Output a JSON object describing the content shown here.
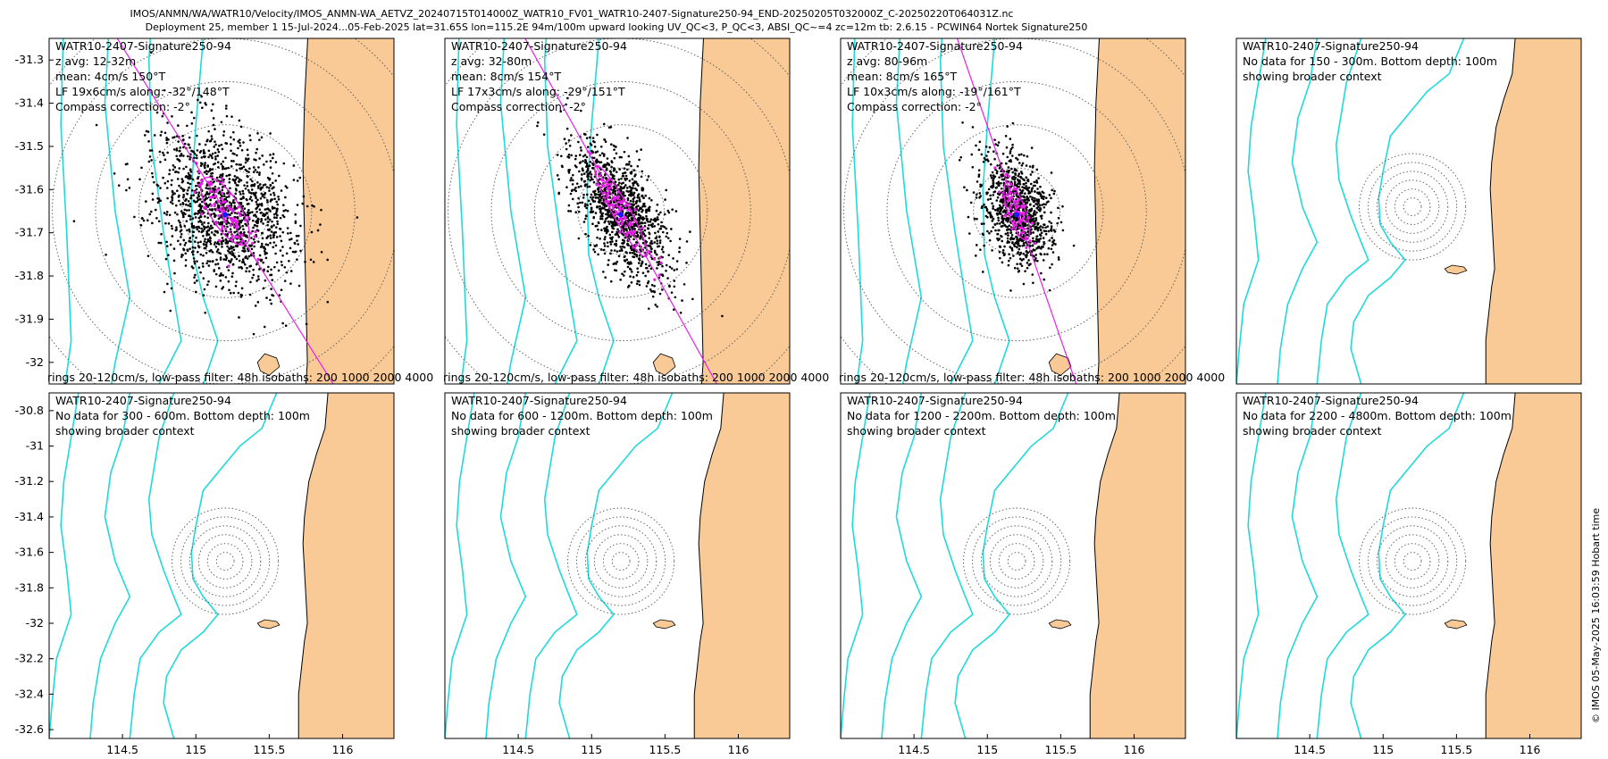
{
  "header": {
    "line1": "IMOS/ANMN/WA/WATR10/Velocity/IMOS_ANMN-WA_AETVZ_20240715T014000Z_WATR10_FV01_WATR10-2407-Signature250-94_END-20250205T032000Z_C-20250220T064031Z.nc",
    "line2": "Deployment 25, member 1 15-Jul-2024...05-Feb-2025 lat=31.65S lon=115.2E 94m/100m upward looking UV_QC<3, P_QC<3, ABSI_QC~=4 zc=12m tb: 2.6.15 - PCWIN64 Nortek Signature250"
  },
  "footer_stamp": "© IMOS 05-May-2025 16:03:59 Hobart time",
  "colors": {
    "land": "#FACA96",
    "isobath": "#1EDADA",
    "ellipse": "#E81FE8",
    "mean_arrow": "#1a1aff",
    "dots": "#000000"
  },
  "chart_data": [
    {
      "type": "scatter",
      "name": "panel-1",
      "lines": [
        "WATR10-2407-Signature250-94",
        "z avg: 12-32m",
        "mean: 4cm/s 150°T",
        "LF 19x6cm/s along: -32°/148°T",
        "Compass correction: -2°"
      ],
      "bottom_text": "rings 20-120cm/s, low-pass filter: 48h isobaths: 200 1000 2000 4000",
      "xlim": [
        114.0,
        116.35
      ],
      "ylim": [
        -32.05,
        -31.25
      ],
      "yticks": [
        -31.3,
        -31.4,
        -31.5,
        -31.6,
        -31.7,
        -31.8,
        -31.9,
        -32
      ],
      "ytick_labels": [
        "-31.3",
        "-31.4",
        "-31.5",
        "-31.6",
        "-31.7",
        "-31.8",
        "-31.9",
        "-32"
      ],
      "xticks": [],
      "xtick_labels": [],
      "ring_center": [
        115.2,
        -31.65
      ],
      "ring_step": 0.1,
      "rings": 6,
      "cloud": {
        "semi_major": 0.2,
        "semi_minor": 0.15,
        "angle_deg": 150,
        "count": 1400
      },
      "lf": {
        "semi_major": 0.09,
        "semi_minor": 0.035,
        "angle_deg": 148,
        "count": 90
      },
      "axis_line_deg": 148
    },
    {
      "type": "scatter",
      "name": "panel-2",
      "lines": [
        "WATR10-2407-Signature250-94",
        "z avg: 32-80m",
        "mean: 8cm/s 154°T",
        "LF 17x3cm/s along: -29°/151°T",
        "Compass correction: -2°"
      ],
      "bottom_text": "rings 20-120cm/s, low-pass filter: 48h isobaths: 200 1000 2000 4000",
      "xlim": [
        114.0,
        116.35
      ],
      "ylim": [
        -32.05,
        -31.25
      ],
      "yticks": [],
      "ytick_labels": [],
      "xticks": [],
      "xtick_labels": [],
      "ring_center": [
        115.2,
        -31.65
      ],
      "ring_step": 0.1,
      "rings": 6,
      "cloud": {
        "semi_major": 0.18,
        "semi_minor": 0.08,
        "angle_deg": 151,
        "count": 1200
      },
      "lf": {
        "semi_major": 0.12,
        "semi_minor": 0.02,
        "angle_deg": 151,
        "count": 90
      },
      "axis_line_deg": 151
    },
    {
      "type": "scatter",
      "name": "panel-3",
      "lines": [
        "WATR10-2407-Signature250-94",
        "z avg: 80-96m",
        "mean: 8cm/s 165°T",
        "LF 10x3cm/s along: -19°/161°T",
        "Compass correction: -2°"
      ],
      "bottom_text": "rings 20-120cm/s, low-pass filter: 48h isobaths: 200 1000 2000 4000",
      "xlim": [
        114.0,
        116.35
      ],
      "ylim": [
        -32.05,
        -31.25
      ],
      "yticks": [],
      "ytick_labels": [],
      "xticks": [],
      "xtick_labels": [],
      "ring_center": [
        115.2,
        -31.65
      ],
      "ring_step": 0.1,
      "rings": 6,
      "cloud": {
        "semi_major": 0.13,
        "semi_minor": 0.07,
        "angle_deg": 161,
        "count": 1000
      },
      "lf": {
        "semi_major": 0.07,
        "semi_minor": 0.02,
        "angle_deg": 161,
        "count": 70
      },
      "axis_line_deg": 161
    },
    {
      "type": "scatter",
      "name": "panel-4",
      "lines": [
        "WATR10-2407-Signature250-94",
        "No data for 150 - 300m. Bottom depth: 100m",
        "showing broader context"
      ],
      "bottom_text": "",
      "xlim": [
        114.0,
        116.35
      ],
      "ylim": [
        -32.65,
        -30.7
      ],
      "yticks": [],
      "ytick_labels": [],
      "xticks": [],
      "xtick_labels": [],
      "ring_center": [
        115.2,
        -31.65
      ],
      "ring_step": 0.05,
      "rings": 6,
      "cloud": null,
      "lf": null,
      "axis_line_deg": null
    },
    {
      "type": "scatter",
      "name": "panel-5",
      "lines": [
        "WATR10-2407-Signature250-94",
        "No data for 300 - 600m. Bottom depth: 100m",
        "showing broader context"
      ],
      "bottom_text": "",
      "xlim": [
        114.0,
        116.35
      ],
      "ylim": [
        -32.65,
        -30.7
      ],
      "yticks": [
        -30.8,
        -31,
        -31.2,
        -31.4,
        -31.6,
        -31.8,
        -32,
        -32.2,
        -32.4,
        -32.6
      ],
      "ytick_labels": [
        "-30.8",
        "-31",
        "-31.2",
        "-31.4",
        "-31.6",
        "-31.8",
        "-32",
        "-32.2",
        "-32.4",
        "-32.6"
      ],
      "xticks": [
        114.5,
        115,
        115.5,
        116
      ],
      "xtick_labels": [
        "114.5",
        "115",
        "115.5",
        "116"
      ],
      "ring_center": [
        115.2,
        -31.65
      ],
      "ring_step": 0.05,
      "rings": 6,
      "cloud": null,
      "lf": null,
      "axis_line_deg": null
    },
    {
      "type": "scatter",
      "name": "panel-6",
      "lines": [
        "WATR10-2407-Signature250-94",
        "No data for 600 - 1200m. Bottom depth: 100m",
        "showing broader context"
      ],
      "bottom_text": "",
      "xlim": [
        114.0,
        116.35
      ],
      "ylim": [
        -32.65,
        -30.7
      ],
      "yticks": [],
      "ytick_labels": [],
      "xticks": [
        114.5,
        115,
        115.5,
        116
      ],
      "xtick_labels": [
        "114.5",
        "115",
        "115.5",
        "116"
      ],
      "ring_center": [
        115.2,
        -31.65
      ],
      "ring_step": 0.05,
      "rings": 6,
      "cloud": null,
      "lf": null,
      "axis_line_deg": null
    },
    {
      "type": "scatter",
      "name": "panel-7",
      "lines": [
        "WATR10-2407-Signature250-94",
        "No data for 1200 - 2200m. Bottom depth: 100m",
        "showing broader context"
      ],
      "bottom_text": "",
      "xlim": [
        114.0,
        116.35
      ],
      "ylim": [
        -32.65,
        -30.7
      ],
      "yticks": [],
      "ytick_labels": [],
      "xticks": [
        114.5,
        115,
        115.5,
        116
      ],
      "xtick_labels": [
        "114.5",
        "115",
        "115.5",
        "116"
      ],
      "ring_center": [
        115.2,
        -31.65
      ],
      "ring_step": 0.05,
      "rings": 6,
      "cloud": null,
      "lf": null,
      "axis_line_deg": null
    },
    {
      "type": "scatter",
      "name": "panel-8",
      "lines": [
        "WATR10-2407-Signature250-94",
        "No data for 2200 - 4800m. Bottom depth: 100m",
        "showing broader context"
      ],
      "bottom_text": "",
      "xlim": [
        114.0,
        116.35
      ],
      "ylim": [
        -32.65,
        -30.7
      ],
      "yticks": [],
      "ytick_labels": [],
      "xticks": [
        114.5,
        115,
        115.5,
        116
      ],
      "xtick_labels": [
        "114.5",
        "115",
        "115.5",
        "116"
      ],
      "ring_center": [
        115.2,
        -31.65
      ],
      "ring_step": 0.05,
      "rings": 6,
      "cloud": null,
      "lf": null,
      "axis_line_deg": null
    }
  ]
}
